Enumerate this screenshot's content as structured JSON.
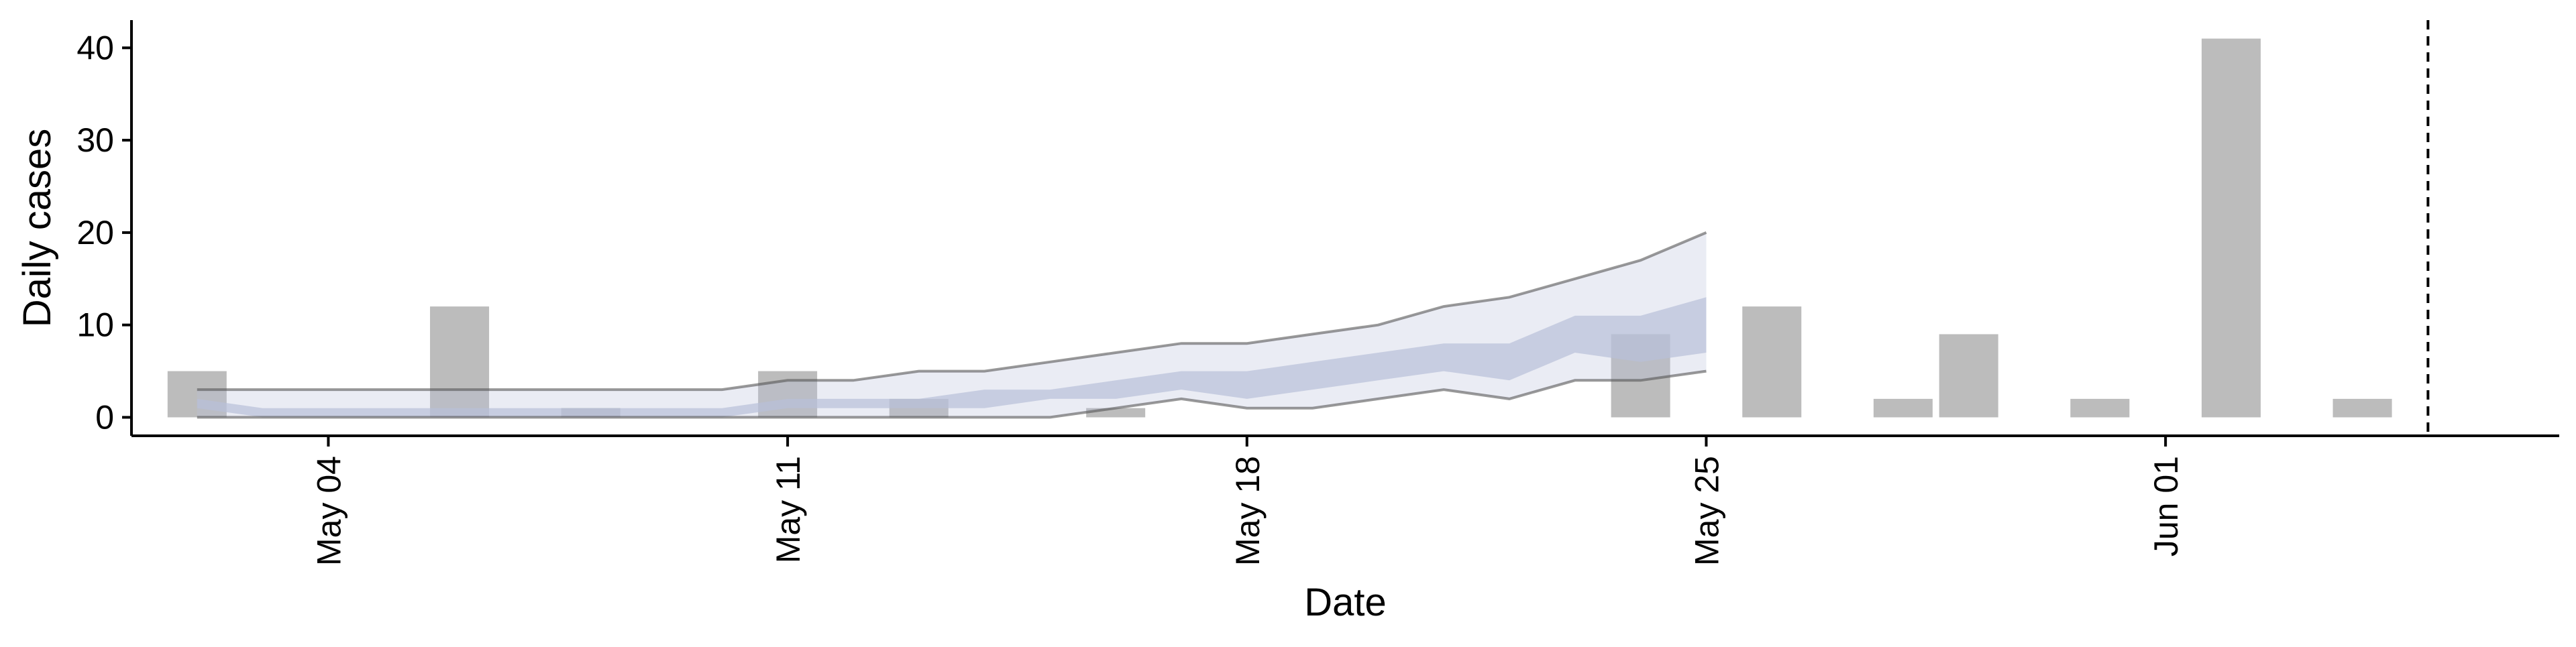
{
  "chart_data": {
    "type": "bar",
    "xlabel": "Date",
    "ylabel": "Daily cases",
    "ylim": [
      -2,
      43
    ],
    "xlim": [
      "2020-05-01",
      "2020-06-07"
    ],
    "yticks": [
      0,
      10,
      20,
      30,
      40
    ],
    "xticks": [
      {
        "date": "2020-05-04",
        "label": "May 04"
      },
      {
        "date": "2020-05-11",
        "label": "May 11"
      },
      {
        "date": "2020-05-18",
        "label": "May 18"
      },
      {
        "date": "2020-05-25",
        "label": "May 25"
      },
      {
        "date": "2020-06-01",
        "label": "Jun 01"
      }
    ],
    "bars": {
      "color": "#bcbcbc",
      "x": [
        "2020-05-02",
        "2020-05-06",
        "2020-05-08",
        "2020-05-11",
        "2020-05-13",
        "2020-05-16",
        "2020-05-24",
        "2020-05-26",
        "2020-05-28",
        "2020-05-29",
        "2020-05-31",
        "2020-06-02",
        "2020-06-04"
      ],
      "values": [
        5,
        12,
        1,
        5,
        2,
        1,
        9,
        12,
        2,
        9,
        2,
        41,
        2
      ]
    },
    "forecast": {
      "color": "#b8c0d9",
      "x": [
        "2020-05-02",
        "2020-05-03",
        "2020-05-04",
        "2020-05-05",
        "2020-05-06",
        "2020-05-07",
        "2020-05-08",
        "2020-05-09",
        "2020-05-10",
        "2020-05-11",
        "2020-05-12",
        "2020-05-13",
        "2020-05-14",
        "2020-05-15",
        "2020-05-16",
        "2020-05-17",
        "2020-05-18",
        "2020-05-19",
        "2020-05-20",
        "2020-05-21",
        "2020-05-22",
        "2020-05-23",
        "2020-05-24",
        "2020-05-25"
      ],
      "upper_outer": [
        3,
        3,
        3,
        3,
        3,
        3,
        3,
        3,
        3,
        4,
        4,
        5,
        5,
        6,
        7,
        8,
        8,
        9,
        10,
        12,
        13,
        15,
        17,
        20
      ],
      "upper_inner": [
        2,
        1,
        1,
        1,
        1,
        1,
        1,
        1,
        1,
        2,
        2,
        2,
        3,
        3,
        4,
        5,
        5,
        6,
        7,
        8,
        8,
        11,
        11,
        13
      ],
      "lower_inner": [
        1,
        0,
        0,
        0,
        0,
        0,
        0,
        0,
        0,
        1,
        1,
        1,
        1,
        2,
        2,
        3,
        2,
        3,
        4,
        5,
        4,
        7,
        6,
        7
      ],
      "lower_outer": [
        0,
        0,
        0,
        0,
        0,
        0,
        0,
        0,
        0,
        0,
        0,
        0,
        0,
        0,
        1,
        2,
        1,
        1,
        2,
        3,
        2,
        4,
        4,
        5
      ]
    },
    "reference_line": {
      "x": "2020-06-05",
      "style": "dashed"
    },
    "grid": false,
    "legend": "none"
  }
}
